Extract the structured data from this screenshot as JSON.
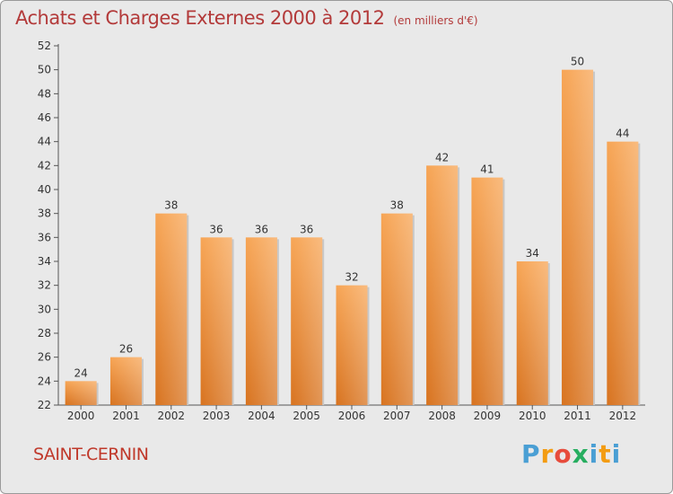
{
  "header": {
    "title": "Achats et Charges Externes 2000 à 2012",
    "subtitle": "(en milliers d'€)"
  },
  "footer": {
    "commune": "SAINT-CERNIN",
    "logo": [
      "P",
      "r",
      "o",
      "x",
      "i",
      "t",
      "i"
    ],
    "logo_colors": [
      "#4a9fd4",
      "#f39c12",
      "#e74c3c",
      "#27ae60",
      "#4a9fd4",
      "#f39c12",
      "#4a9fd4"
    ]
  },
  "chart_data": {
    "type": "bar",
    "categories": [
      "2000",
      "2001",
      "2002",
      "2003",
      "2004",
      "2005",
      "2006",
      "2007",
      "2008",
      "2009",
      "2010",
      "2011",
      "2012"
    ],
    "values": [
      24,
      26,
      38,
      36,
      36,
      36,
      32,
      38,
      42,
      41,
      34,
      50,
      44
    ],
    "ylim": [
      22,
      52
    ],
    "yticks": [
      22,
      24,
      26,
      28,
      30,
      32,
      34,
      36,
      38,
      40,
      42,
      44,
      46,
      48,
      50,
      52
    ],
    "grid": false,
    "bar_color": "#f0a050",
    "data_labels": true
  }
}
